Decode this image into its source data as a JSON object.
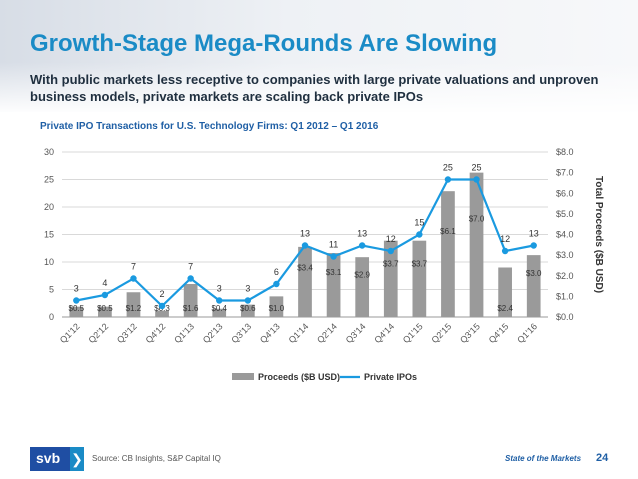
{
  "header": {
    "title": "Growth-Stage Mega-Rounds Are Slowing",
    "subtitle": "With public markets less receptive to companies with large private valuations and unproven business models, private markets are scaling back private IPOs"
  },
  "chart_data": {
    "type": "bar",
    "title": "Private IPO Transactions for U.S. Technology Firms: Q1 2012 – Q1 2016",
    "categories": [
      "Q1'12",
      "Q2'12",
      "Q3'12",
      "Q4'12",
      "Q1'13",
      "Q2'13",
      "Q3'13",
      "Q4'13",
      "Q1'14",
      "Q2'14",
      "Q3'14",
      "Q4'14",
      "Q1'15",
      "Q2'15",
      "Q3'15",
      "Q4'15",
      "Q1'16"
    ],
    "series": [
      {
        "name": "Proceeds ($B USD)",
        "type": "bar",
        "axis": "right",
        "color": "#9a9a9a",
        "values": [
          0.5,
          0.5,
          1.2,
          0.3,
          1.6,
          0.4,
          0.6,
          1.0,
          3.4,
          3.1,
          2.9,
          3.7,
          3.7,
          6.1,
          7.0,
          2.4,
          3.0
        ],
        "labels": [
          "$0.5",
          "$0.5",
          "$1.2",
          "$0.3",
          "$1.6",
          "$0.4",
          "$0.6",
          "$1.0",
          "$3.4",
          "$3.1",
          "$2.9",
          "$3.7",
          "$3.7",
          "$6.1",
          "$7.0",
          "$2.4",
          "$3.0"
        ]
      },
      {
        "name": "Private IPOs",
        "type": "line",
        "axis": "left",
        "color": "#1a9ae0",
        "values": [
          3,
          4,
          7,
          2,
          7,
          3,
          3,
          6,
          13,
          11,
          13,
          12,
          15,
          25,
          25,
          12,
          13
        ],
        "labels": [
          "3",
          "4",
          "7",
          "2",
          "7",
          "3",
          "3",
          "6",
          "13",
          "11",
          "13",
          "12",
          "15",
          "25",
          "25",
          "12",
          "13"
        ]
      }
    ],
    "left_axis": {
      "range": [
        0,
        30
      ],
      "ticks": [
        "0",
        "5",
        "10",
        "15",
        "20",
        "25",
        "30"
      ]
    },
    "right_axis": {
      "label": "Total Proceeds ($B USD)",
      "range": [
        0,
        8
      ],
      "ticks": [
        "$0.0",
        "$1.0",
        "$2.0",
        "$3.0",
        "$4.0",
        "$5.0",
        "$6.0",
        "$7.0",
        "$8.0"
      ]
    },
    "grid": true,
    "legend": "bottom",
    "legend_items": [
      "Proceeds ($B USD)",
      "Private IPOs"
    ]
  },
  "footer": {
    "logo_text": "svb",
    "logo_chevron": "❯",
    "source": "Source: CB Insights, S&P Capital IQ",
    "section": "State of the Markets",
    "page": "24"
  }
}
